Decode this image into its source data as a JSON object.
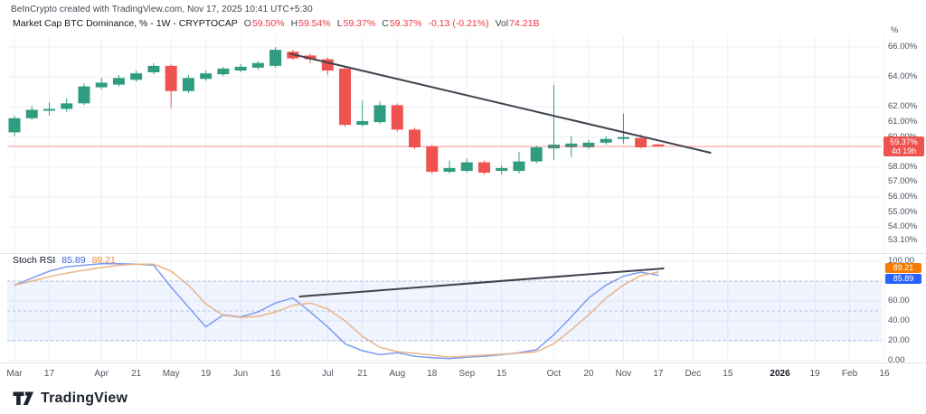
{
  "header": {
    "note": "BeInCrypto created with TradingView.com, Nov 17, 2025 10:41 UTC+5:30"
  },
  "symbol_bar": {
    "title": "Market Cap BTC Dominance, % - 1W - CRYPTOCAP",
    "ohlc": {
      "o_label": "O",
      "o": "59.50%",
      "h_label": "H",
      "h": "59.54%",
      "l_label": "L",
      "l": "59.37%",
      "c_label": "C",
      "c": "59.37%"
    },
    "change": "-0.13 (-0.21%)",
    "volume_label": "Vol",
    "volume": "74.21B"
  },
  "price_axis": {
    "unit": "%",
    "badge": {
      "price": "59.37%",
      "countdown": "4d 19h"
    }
  },
  "footer": {
    "brand": "TradingView"
  },
  "colors": {
    "up": "#2f9c7f",
    "down": "#ef5350",
    "k_line": "#7e9bf2",
    "d_line": "#e8b586",
    "k_accent": "#2962ff",
    "d_accent": "#f57c00",
    "badge_red": "#ef5350",
    "trendline": "#3f434e",
    "grid": "#eceff7",
    "band": "rgba(41,98,255,0.07)",
    "band_line": "rgba(100,130,180,0.45)",
    "price_line": "rgba(239,83,80,0.6)",
    "legend_value_red": "#f23645",
    "legend_k_text": "#3f62d9",
    "legend_d_text": "#f08a3c"
  },
  "chart_data": [
    {
      "type": "candlestick",
      "title": "Market Cap BTC Dominance, % - 1W - CRYPTOCAP",
      "timeframe": "1W",
      "unit": "%",
      "grid": "on",
      "last_price": 59.37,
      "y_axis_labels": [
        66,
        64,
        62,
        61,
        60,
        58,
        57,
        56,
        55,
        54,
        53.1
      ],
      "candles": {
        "dates": [
          "Mar 3",
          "Mar 10",
          "Mar 17",
          "Mar 24",
          "Mar 31",
          "Apr 7",
          "Apr 14",
          "Apr 21",
          "Apr 28",
          "May 5",
          "May 12",
          "May 19",
          "May 26",
          "Jun 2",
          "Jun 9",
          "Jun 16",
          "Jun 23",
          "Jun 30",
          "Jul 7",
          "Jul 14",
          "Jul 21",
          "Jul 28",
          "Aug 4",
          "Aug 11",
          "Aug 18",
          "Aug 25",
          "Sep 1",
          "Sep 8",
          "Sep 15",
          "Sep 22",
          "Sep 29",
          "Oct 6",
          "Oct 13",
          "Oct 20",
          "Oct 27",
          "Nov 3",
          "Nov 10",
          "Nov 17"
        ],
        "o": [
          60.31,
          61.25,
          61.75,
          61.87,
          62.24,
          63.31,
          63.49,
          63.81,
          64.31,
          64.74,
          63.06,
          63.87,
          64.18,
          64.43,
          64.62,
          64.74,
          65.68,
          65.43,
          65.18,
          64.56,
          60.81,
          60.99,
          62.12,
          60.49,
          59.37,
          57.68,
          57.74,
          58.31,
          57.74,
          57.74,
          58.37,
          59.24,
          59.31,
          59.31,
          59.62,
          59.87,
          59.93,
          59.5
        ],
        "h": [
          61.43,
          62.06,
          62.31,
          62.56,
          63.56,
          63.93,
          64.12,
          64.43,
          64.93,
          64.87,
          64.12,
          64.43,
          64.68,
          64.87,
          65.06,
          65.99,
          65.81,
          65.56,
          65.31,
          64.74,
          62.43,
          62.37,
          62.24,
          60.62,
          59.49,
          58.43,
          58.56,
          58.43,
          58.12,
          58.99,
          59.43,
          63.47,
          60.06,
          59.81,
          60.06,
          61.56,
          60.18,
          59.54
        ],
        "l": [
          60.06,
          61.15,
          61.43,
          61.68,
          62.12,
          63.18,
          63.37,
          63.68,
          64.18,
          61.93,
          62.93,
          63.74,
          64.06,
          64.31,
          64.49,
          64.62,
          65.12,
          64.93,
          64.12,
          60.68,
          60.68,
          60.87,
          60.37,
          59.18,
          57.56,
          57.56,
          57.62,
          57.49,
          57.49,
          57.56,
          58.24,
          58.49,
          58.68,
          59.18,
          59.49,
          59.56,
          59.24,
          59.37
        ],
        "c": [
          61.25,
          61.81,
          61.87,
          62.24,
          63.37,
          63.62,
          63.93,
          64.24,
          64.74,
          63.06,
          63.93,
          64.24,
          64.56,
          64.68,
          64.93,
          65.81,
          65.24,
          65.18,
          64.43,
          60.81,
          61.06,
          62.12,
          60.49,
          59.31,
          57.68,
          57.93,
          58.31,
          57.62,
          57.93,
          58.37,
          59.31,
          59.49,
          59.56,
          59.62,
          59.87,
          59.99,
          59.31,
          59.37
        ]
      },
      "trendline": {
        "from_week": 15.85,
        "from_value": 65.55,
        "to_week": 40.0,
        "to_value": 58.95
      },
      "x_ticks": [
        {
          "label": "Mar",
          "week": 0
        },
        {
          "label": "17",
          "week": 2
        },
        {
          "label": "Apr",
          "week": 5
        },
        {
          "label": "21",
          "week": 7
        },
        {
          "label": "May",
          "week": 9
        },
        {
          "label": "19",
          "week": 11
        },
        {
          "label": "Jun",
          "week": 13
        },
        {
          "label": "16",
          "week": 15
        },
        {
          "label": "Jul",
          "week": 18
        },
        {
          "label": "21",
          "week": 20
        },
        {
          "label": "Aug",
          "week": 22
        },
        {
          "label": "18",
          "week": 24
        },
        {
          "label": "Sep",
          "week": 26
        },
        {
          "label": "15",
          "week": 28
        },
        {
          "label": "Oct",
          "week": 31
        },
        {
          "label": "20",
          "week": 33
        },
        {
          "label": "Nov",
          "week": 35
        },
        {
          "label": "17",
          "week": 37
        },
        {
          "label": "Dec",
          "week": 39
        },
        {
          "label": "15",
          "week": 41
        },
        {
          "label": "2026",
          "week": 44
        },
        {
          "label": "19",
          "week": 46
        },
        {
          "label": "Feb",
          "week": 48
        },
        {
          "label": "16",
          "week": 50
        }
      ]
    },
    {
      "type": "line",
      "title": "Stoch RSI",
      "legend": {
        "title": "Stoch RSI",
        "k": "85.89",
        "d": "89.21"
      },
      "y_axis_labels": [
        100,
        80,
        60,
        40,
        20,
        0
      ],
      "bands": {
        "upper": 80,
        "middle": 50,
        "lower": 20
      },
      "ylim": [
        0,
        100
      ],
      "series": [
        {
          "name": "K",
          "values": [
            76,
            83,
            90,
            94.5,
            96,
            97.5,
            97.5,
            97,
            96,
            74,
            54,
            34,
            46,
            44,
            49,
            58,
            63,
            49,
            34,
            17,
            10,
            6,
            8,
            4.5,
            3,
            2,
            3.5,
            4.5,
            6,
            8,
            11,
            26,
            44,
            63,
            76,
            85,
            89,
            85.89
          ]
        },
        {
          "name": "D",
          "values": [
            76,
            80,
            84.5,
            88,
            91,
            93.5,
            96,
            97,
            97,
            90,
            76,
            57,
            45.5,
            43.5,
            44.5,
            49,
            55.5,
            58,
            52,
            40,
            24.5,
            13.5,
            9,
            7.5,
            5.5,
            3.5,
            4.5,
            5.5,
            6.5,
            7.5,
            9,
            17,
            31,
            46,
            63,
            76,
            85.5,
            89.21
          ]
        }
      ],
      "trendline": {
        "from_week": 16.4,
        "from_value": 64.5,
        "to_week": 37.3,
        "to_value": 92.7
      }
    }
  ]
}
